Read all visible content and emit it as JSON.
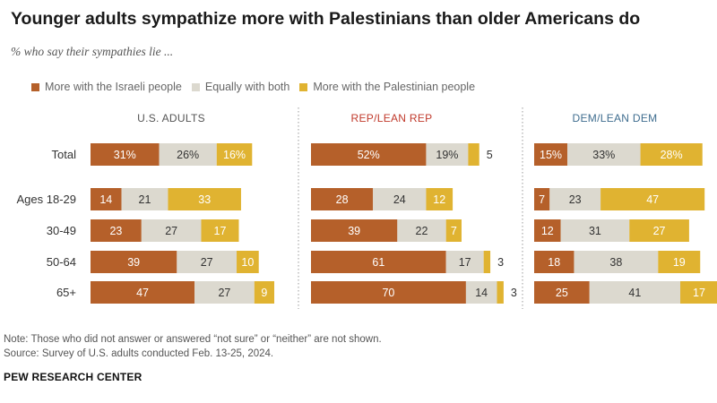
{
  "title": "Younger adults sympathize more with Palestinians than older Americans do",
  "subtitle": "% who say their sympathies lie ...",
  "legend": [
    {
      "label": "More with the Israeli people",
      "color": "#b5602a"
    },
    {
      "label": "Equally with both",
      "color": "#dcd9cf"
    },
    {
      "label": "More with the Palestinian people",
      "color": "#e0b331"
    }
  ],
  "footer": {
    "note": "Note: Those who did not answer or answered “not sure” or “neither” are not shown.",
    "source": "Source: Survey of U.S. adults conducted Feb. 13-25, 2024.",
    "brand": "PEW RESEARCH CENTER"
  },
  "chart_data": {
    "type": "bar",
    "stacked": true,
    "orientation": "horizontal",
    "categories": [
      "Total",
      "Ages 18-29",
      "30-49",
      "50-64",
      "65+"
    ],
    "panels": [
      {
        "title": "U.S. ADULTS",
        "series": [
          {
            "name": "More with the Israeli people",
            "values": [
              31,
              14,
              23,
              39,
              47
            ],
            "labels": [
              "31%",
              "14",
              "23",
              "39",
              "47"
            ]
          },
          {
            "name": "Equally with both",
            "values": [
              26,
              21,
              27,
              27,
              27
            ],
            "labels": [
              "26%",
              "21",
              "27",
              "27",
              "27"
            ]
          },
          {
            "name": "More with the Palestinian people",
            "values": [
              16,
              33,
              17,
              10,
              9
            ],
            "labels": [
              "16%",
              "33",
              "17",
              "10",
              "9"
            ]
          }
        ]
      },
      {
        "title": "REP/LEAN REP",
        "series": [
          {
            "name": "More with the Israeli people",
            "values": [
              52,
              28,
              39,
              61,
              70
            ],
            "labels": [
              "52%",
              "28",
              "39",
              "61",
              "70"
            ]
          },
          {
            "name": "Equally with both",
            "values": [
              19,
              24,
              22,
              17,
              14
            ],
            "labels": [
              "19%",
              "24",
              "22",
              "17",
              "14"
            ]
          },
          {
            "name": "More with the Palestinian people",
            "values": [
              5,
              12,
              7,
              3,
              3
            ],
            "labels": [
              "5",
              "12",
              "7",
              "3",
              "3"
            ]
          }
        ]
      },
      {
        "title": "DEM/LEAN DEM",
        "series": [
          {
            "name": "More with the Israeli people",
            "values": [
              15,
              7,
              12,
              18,
              25
            ],
            "labels": [
              "15%",
              "7",
              "12",
              "18",
              "25"
            ]
          },
          {
            "name": "Equally with both",
            "values": [
              33,
              23,
              31,
              38,
              41
            ],
            "labels": [
              "33%",
              "23",
              "31",
              "38",
              "41"
            ]
          },
          {
            "name": "More with the Palestinian people",
            "values": [
              28,
              47,
              27,
              19,
              17
            ],
            "labels": [
              "28%",
              "47",
              "27",
              "19",
              "17"
            ]
          }
        ]
      }
    ],
    "colors": {
      "israeli": "#b5602a",
      "equal": "#dcd9cf",
      "palestinian": "#e0b331",
      "panel_title_rep": "#c0392b",
      "panel_title_dem": "#3f6d8f",
      "panel_title_all": "#555555"
    }
  }
}
